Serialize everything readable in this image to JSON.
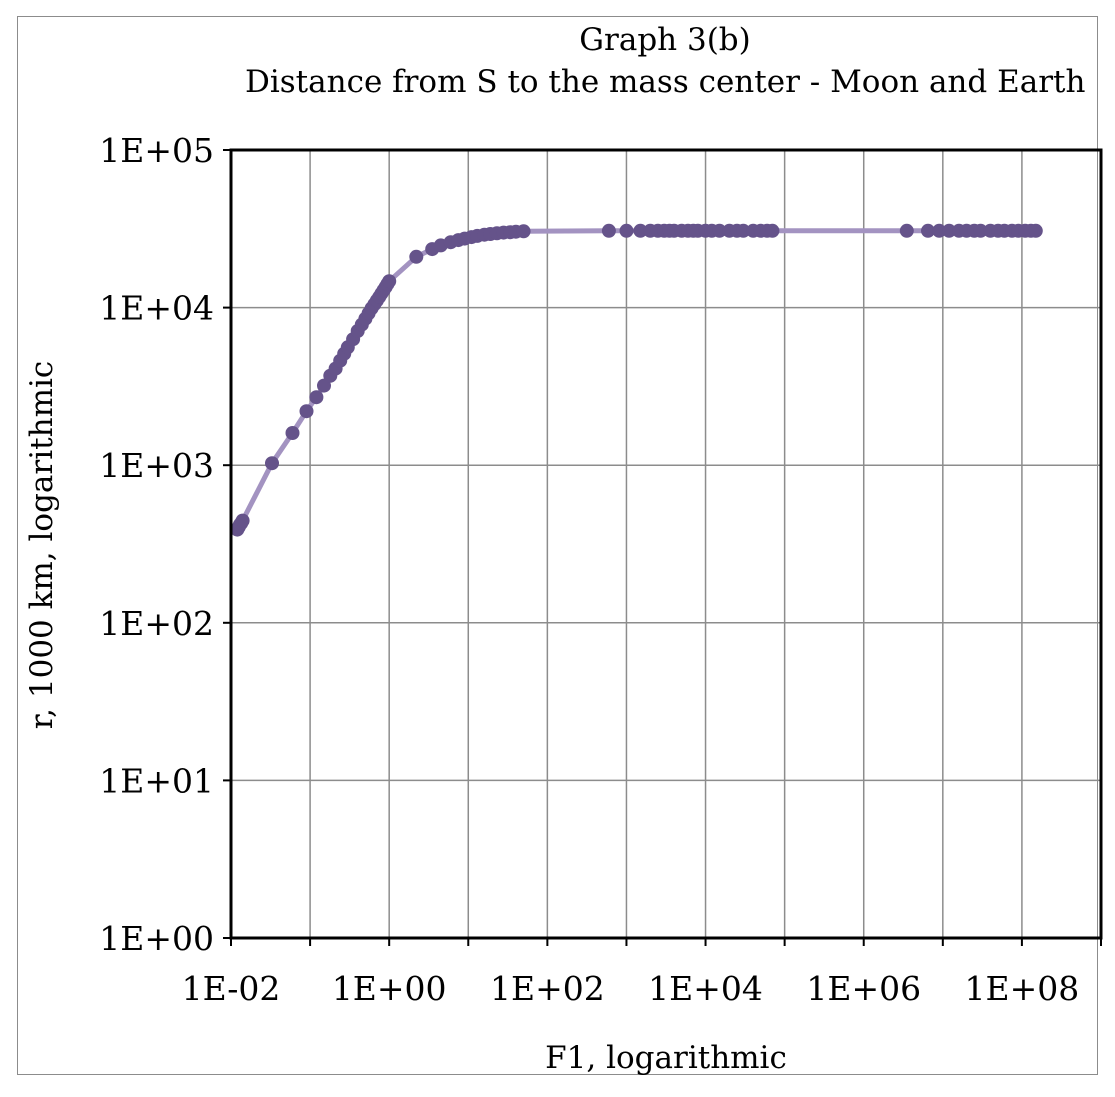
{
  "chart_data": {
    "type": "scatter",
    "title": "Graph 3(b)",
    "subtitle": "Distance from S to the mass center - Moon and Earth",
    "xlabel": "F1, logarithmic",
    "ylabel": "r, 1000 km, logarithmic",
    "xscale": "log",
    "yscale": "log",
    "xlim": [
      0.01,
      1000000000
    ],
    "ylim": [
      1,
      100000
    ],
    "grid": true,
    "legend": "none",
    "x_tick_labels": [
      "1E-02",
      "1E+00",
      "1E+02",
      "1E+04",
      "1E+06",
      "1E+08"
    ],
    "y_tick_labels": [
      "1E+05",
      "1E+04",
      "1E+03",
      "1E+02",
      "1E+01",
      "1E+00"
    ],
    "series": [
      {
        "line_color": "#a393c1",
        "marker_color": "#65538a",
        "points": [
          [
            0.012,
            390
          ],
          [
            0.0125,
            405
          ],
          [
            0.013,
            420
          ],
          [
            0.0135,
            430
          ],
          [
            0.014,
            445
          ],
          [
            0.033,
            1030
          ],
          [
            0.06,
            1600
          ],
          [
            0.09,
            2200
          ],
          [
            0.12,
            2700
          ],
          [
            0.15,
            3200
          ],
          [
            0.18,
            3700
          ],
          [
            0.21,
            4100
          ],
          [
            0.24,
            4600
          ],
          [
            0.27,
            5100
          ],
          [
            0.3,
            5600
          ],
          [
            0.35,
            6300
          ],
          [
            0.4,
            7100
          ],
          [
            0.45,
            7800
          ],
          [
            0.5,
            8500
          ],
          [
            0.55,
            9200
          ],
          [
            0.6,
            9900
          ],
          [
            0.65,
            10500
          ],
          [
            0.7,
            11100
          ],
          [
            0.75,
            11700
          ],
          [
            0.8,
            12300
          ],
          [
            0.85,
            12900
          ],
          [
            0.9,
            13500
          ],
          [
            0.95,
            14100
          ],
          [
            1,
            14700
          ],
          [
            2.2,
            21000
          ],
          [
            3.5,
            23500
          ],
          [
            4.5,
            24800
          ],
          [
            6,
            26000
          ],
          [
            7.5,
            26800
          ],
          [
            9,
            27400
          ],
          [
            11,
            28000
          ],
          [
            13,
            28500
          ],
          [
            16,
            29000
          ],
          [
            19,
            29300
          ],
          [
            23,
            29600
          ],
          [
            28,
            29900
          ],
          [
            34,
            30100
          ],
          [
            40,
            30300
          ],
          [
            50,
            30500
          ],
          [
            600,
            30700
          ],
          [
            1000,
            30700
          ],
          [
            1500,
            30700
          ],
          [
            2000,
            30700
          ],
          [
            2500,
            30700
          ],
          [
            3000,
            30700
          ],
          [
            3500,
            30700
          ],
          [
            4000,
            30700
          ],
          [
            5000,
            30700
          ],
          [
            6000,
            30700
          ],
          [
            7000,
            30700
          ],
          [
            8000,
            30700
          ],
          [
            10000,
            30700
          ],
          [
            12000,
            30700
          ],
          [
            15000,
            30700
          ],
          [
            20000,
            30700
          ],
          [
            25000,
            30700
          ],
          [
            30000,
            30700
          ],
          [
            40000,
            30700
          ],
          [
            50000,
            30700
          ],
          [
            60000,
            30700
          ],
          [
            70000,
            30700
          ],
          [
            3500000,
            30700
          ],
          [
            6500000,
            30700
          ],
          [
            9000000,
            30700
          ],
          [
            12000000,
            30700
          ],
          [
            16000000,
            30700
          ],
          [
            20000000,
            30700
          ],
          [
            25000000,
            30700
          ],
          [
            30000000,
            30700
          ],
          [
            40000000,
            30700
          ],
          [
            50000000,
            30700
          ],
          [
            60000000,
            30700
          ],
          [
            75000000,
            30700
          ],
          [
            90000000,
            30700
          ],
          [
            110000000,
            30700
          ],
          [
            130000000,
            30700
          ],
          [
            150000000,
            30700
          ]
        ]
      }
    ]
  }
}
